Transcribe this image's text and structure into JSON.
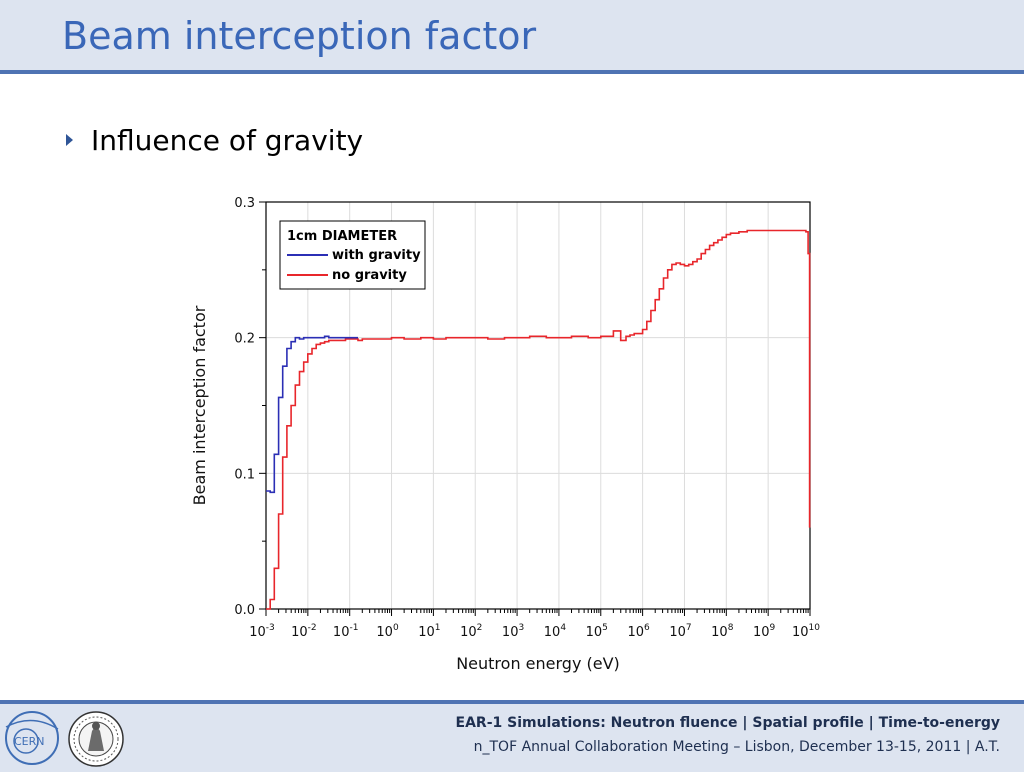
{
  "slide": {
    "title": "Beam interception factor",
    "bullet": "Influence of gravity"
  },
  "footer": {
    "line1": "EAR-1 Simulations: Neutron fluence | Spatial profile | Time-to-energy",
    "line2": "n_TOF Annual Collaboration Meeting – Lisbon, December 13-15, 2011 | A.T."
  },
  "logos": {
    "left": "CERN"
  },
  "colors": {
    "title": "#3a67b8",
    "accent": "#4f73b3",
    "band": "#dde4f0",
    "with_gravity": "#2b2fb5",
    "no_gravity": "#e8262b"
  },
  "chart_data": {
    "type": "line",
    "xlabel": "Neutron energy (eV)",
    "ylabel": "Beam interception factor",
    "x_scale": "log",
    "xlim": [
      0.001,
      10000000000
    ],
    "ylim": [
      0,
      0.3
    ],
    "x_tick_labels": [
      "10-3",
      "10-2",
      "10-1",
      "100",
      "101",
      "102",
      "103",
      "104",
      "105",
      "106",
      "107",
      "108",
      "109",
      "1010"
    ],
    "y_tick_labels": [
      "0.0",
      "0.1",
      "0.2",
      "0.3"
    ],
    "y_ticks": [
      0,
      0.1,
      0.2,
      0.3
    ],
    "grid": true,
    "legend": {
      "position": "top-left",
      "title": "1cm DIAMETER"
    },
    "series": [
      {
        "name": "with gravity",
        "color": "#2b2fb5",
        "x": [
          0.001,
          0.00126,
          0.00158,
          0.002,
          0.00251,
          0.00316,
          0.00398,
          0.00501,
          0.00631,
          0.00794,
          0.01,
          0.0126,
          0.0158,
          0.02,
          0.0251,
          0.0316,
          0.0398,
          0.0501,
          0.0631,
          0.0794,
          0.1,
          0.126,
          0.158
        ],
        "y": [
          0.087,
          0.086,
          0.114,
          0.156,
          0.179,
          0.192,
          0.197,
          0.2,
          0.199,
          0.2,
          0.2,
          0.2,
          0.2,
          0.2,
          0.201,
          0.2,
          0.2,
          0.2,
          0.2,
          0.2,
          0.2,
          0.2,
          0.2
        ]
      },
      {
        "name": "no gravity",
        "color": "#e8262b",
        "x": [
          0.001,
          0.00126,
          0.00158,
          0.002,
          0.00251,
          0.00316,
          0.00398,
          0.00501,
          0.00631,
          0.00794,
          0.01,
          0.0126,
          0.0158,
          0.02,
          0.0251,
          0.0316,
          0.0398,
          0.0501,
          0.0631,
          0.0794,
          0.1,
          0.126,
          0.158,
          0.2,
          0.316,
          0.501,
          1,
          2,
          5,
          10,
          20,
          50,
          100,
          200,
          500,
          1000,
          2000,
          5000,
          10000,
          20000,
          50000,
          100000,
          200000,
          300000,
          400000,
          500000,
          631000,
          794000,
          1000000,
          1260000,
          1580000,
          2000000,
          2510000,
          3160000,
          3980000,
          5010000,
          6310000,
          7940000,
          10000000,
          12600000,
          15800000,
          20000000,
          25100000,
          31600000,
          39800000,
          50100000,
          63100000,
          79400000,
          100000000,
          126000000,
          158000000,
          200000000,
          251000000,
          316000000,
          398000000,
          501000000,
          631000000,
          794000000,
          1000000000,
          1260000000,
          1580000000,
          2000000000,
          2510000000,
          3160000000,
          3980000000,
          5010000000,
          6310000000,
          7000000000,
          8000000000,
          9000000000,
          9500000000,
          9800000000
        ],
        "y": [
          0,
          0.007,
          0.03,
          0.07,
          0.112,
          0.135,
          0.15,
          0.165,
          0.175,
          0.182,
          0.188,
          0.192,
          0.195,
          0.196,
          0.197,
          0.198,
          0.198,
          0.198,
          0.198,
          0.199,
          0.199,
          0.199,
          0.198,
          0.199,
          0.199,
          0.199,
          0.2,
          0.199,
          0.2,
          0.199,
          0.2,
          0.2,
          0.2,
          0.199,
          0.2,
          0.2,
          0.201,
          0.2,
          0.2,
          0.201,
          0.2,
          0.201,
          0.205,
          0.198,
          0.201,
          0.202,
          0.203,
          0.203,
          0.206,
          0.212,
          0.22,
          0.228,
          0.236,
          0.244,
          0.25,
          0.254,
          0.255,
          0.254,
          0.253,
          0.254,
          0.256,
          0.258,
          0.262,
          0.265,
          0.268,
          0.27,
          0.272,
          0.274,
          0.276,
          0.277,
          0.277,
          0.278,
          0.278,
          0.279,
          0.279,
          0.279,
          0.279,
          0.279,
          0.279,
          0.279,
          0.279,
          0.279,
          0.279,
          0.279,
          0.279,
          0.279,
          0.279,
          0.279,
          0.278,
          0.262,
          0.262,
          0.06
        ]
      }
    ]
  }
}
